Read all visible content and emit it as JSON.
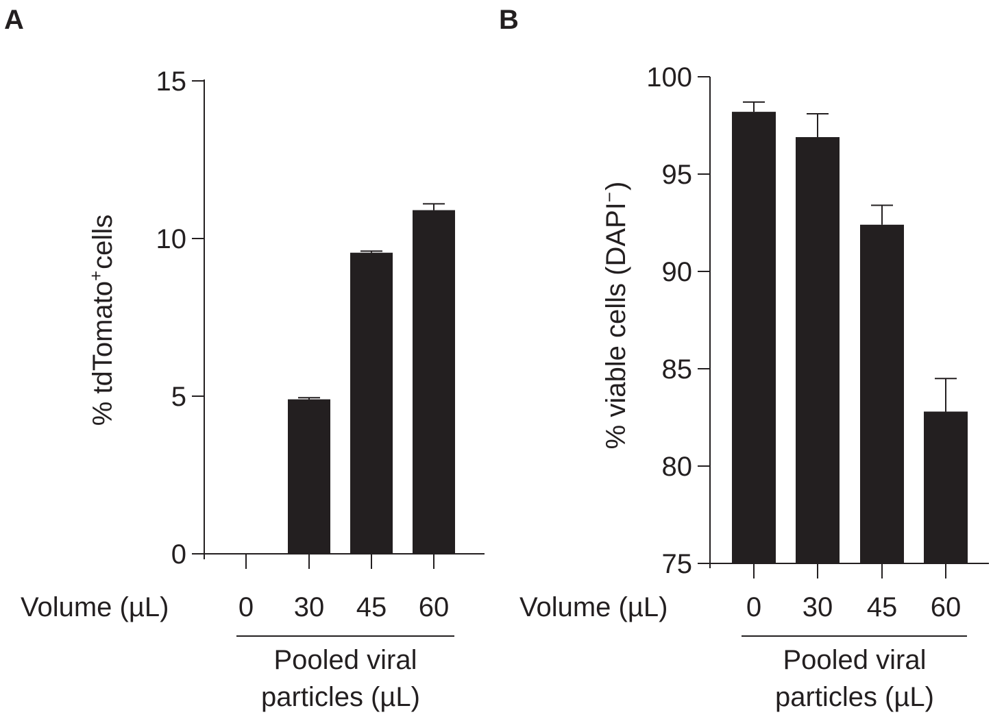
{
  "colors": {
    "bar": "#231f20",
    "axis": "#231f20",
    "background": "#ffffff"
  },
  "chart_data": [
    {
      "panel": "A",
      "type": "bar",
      "ylabel": {
        "main": "% tdTomato",
        "sup": "+",
        "tail": "cells"
      },
      "ylim": [
        0,
        15
      ],
      "yticks": [
        "0",
        "5",
        "10",
        "15"
      ],
      "xlabel": "Volume (µL)",
      "categories": [
        "0",
        "30",
        "45",
        "60"
      ],
      "values": [
        0,
        4.9,
        9.55,
        10.9
      ],
      "errors": [
        0,
        0.05,
        0.05,
        0.2
      ],
      "group_label": [
        "Pooled viral",
        "particles (µL)"
      ]
    },
    {
      "panel": "B",
      "type": "bar",
      "ylabel": {
        "main": "% viable cells (DAPI",
        "sup": "−",
        "tail": ")"
      },
      "ylim": [
        75,
        100
      ],
      "yticks": [
        "75",
        "80",
        "85",
        "90",
        "95",
        "100"
      ],
      "xlabel": "Volume (µL)",
      "categories": [
        "0",
        "30",
        "45",
        "60"
      ],
      "values": [
        98.2,
        96.9,
        92.4,
        82.8
      ],
      "errors": [
        0.5,
        1.2,
        1.0,
        1.7
      ],
      "group_label": [
        "Pooled viral",
        "particles (µL)"
      ]
    }
  ]
}
